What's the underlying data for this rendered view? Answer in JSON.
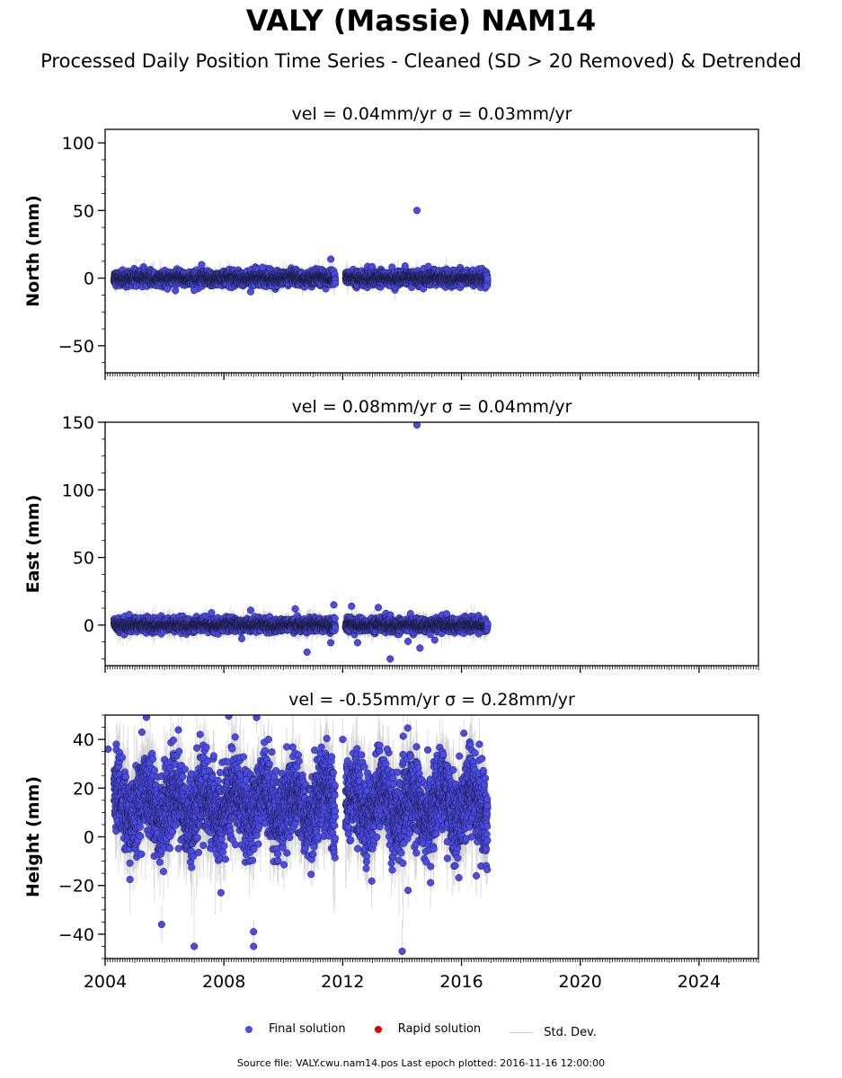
{
  "title": "VALY (Massie) NAM14",
  "subtitle": "Processed Daily Position Time Series - Cleaned (SD > 20 Removed) & Detrended",
  "legend": {
    "final": "Final solution",
    "rapid": "Rapid solution",
    "std": "Std. Dev."
  },
  "footnote": "Source file: VALY.cwu.nam14.pos  Last epoch plotted: 2016-11-16 12:00:00",
  "colors": {
    "final": "#4b4bea",
    "rapid": "#e00000",
    "std": "#c8c8c8"
  },
  "chart_data": [
    {
      "type": "scatter",
      "panel": "north",
      "title": "vel = 0.04mm/yr   σ = 0.03mm/yr",
      "ylabel": "North (mm)",
      "xlim": [
        2004,
        2026
      ],
      "ylim": [
        -70,
        110
      ],
      "yticks": [
        -50,
        0,
        50,
        100
      ],
      "ytick_labels": [
        "−50",
        "0",
        "50",
        "100"
      ],
      "xticks": [
        2004,
        2008,
        2012,
        2016,
        2020,
        2024
      ],
      "xtick_labels": [],
      "data_range": [
        2004.3,
        2016.88
      ],
      "gap": [
        2011.75,
        2012.1
      ],
      "noise": 2.4,
      "errbar": 5,
      "outliers": [
        [
          2014.5,
          50
        ],
        [
          2011.6,
          14
        ],
        [
          2007.25,
          10
        ],
        [
          2014.1,
          9
        ],
        [
          2009.3,
          8
        ],
        [
          2006.1,
          -8
        ],
        [
          2007.0,
          -9
        ],
        [
          2016.85,
          -6
        ],
        [
          2008.9,
          -10
        ]
      ]
    },
    {
      "type": "scatter",
      "panel": "east",
      "title": "vel = 0.08mm/yr   σ = 0.04mm/yr",
      "ylabel": "East (mm)",
      "xlim": [
        2004,
        2026
      ],
      "ylim": [
        -30,
        150
      ],
      "yticks": [
        0,
        50,
        100,
        150
      ],
      "ytick_labels": [
        "0",
        "50",
        "100",
        "150"
      ],
      "xticks": [
        2004,
        2008,
        2012,
        2016,
        2020,
        2024
      ],
      "xtick_labels": [],
      "data_range": [
        2004.3,
        2016.88
      ],
      "gap": [
        2011.75,
        2012.1
      ],
      "noise": 2.2,
      "errbar": 6,
      "outliers": [
        [
          2014.5,
          148
        ],
        [
          2013.6,
          -25
        ],
        [
          2014.6,
          -17
        ],
        [
          2010.8,
          -20
        ],
        [
          2011.6,
          -13
        ],
        [
          2012.5,
          -13
        ],
        [
          2014.2,
          -12
        ],
        [
          2015.1,
          -11
        ],
        [
          2010.4,
          12
        ],
        [
          2011.7,
          15
        ],
        [
          2008.9,
          11
        ],
        [
          2008.6,
          -10
        ],
        [
          2012.3,
          14
        ],
        [
          2013.2,
          13
        ]
      ]
    },
    {
      "type": "scatter",
      "panel": "height",
      "title": "vel = -0.55mm/yr   σ = 0.28mm/yr",
      "ylabel": "Height (mm)",
      "xlim": [
        2004,
        2026
      ],
      "ylim": [
        -50,
        50
      ],
      "yticks": [
        -40,
        -20,
        0,
        20,
        40
      ],
      "ytick_labels": [
        "−40",
        "−20",
        "0",
        "20",
        "40"
      ],
      "xticks": [
        2004,
        2008,
        2012,
        2016,
        2020,
        2024
      ],
      "xtick_labels": [
        "2004",
        "2008",
        "2012",
        "2016",
        "2020",
        "2024"
      ],
      "data_range": [
        2004.3,
        2016.88
      ],
      "gap": [
        2011.75,
        2012.1
      ],
      "noise": 8,
      "base": 13,
      "errbar": 14,
      "outliers": [
        [
          2007.0,
          -45
        ],
        [
          2009.0,
          -45
        ],
        [
          2014.0,
          -47
        ],
        [
          2005.9,
          -36
        ],
        [
          2009.0,
          -39
        ],
        [
          2007.9,
          -23
        ],
        [
          2014.2,
          -22
        ],
        [
          2016.5,
          -16
        ],
        [
          2009.1,
          49
        ],
        [
          2009.5,
          40
        ],
        [
          2012.0,
          40
        ],
        [
          2016.6,
          38
        ],
        [
          2004.1,
          36
        ],
        [
          2013.5,
          36
        ]
      ]
    }
  ]
}
